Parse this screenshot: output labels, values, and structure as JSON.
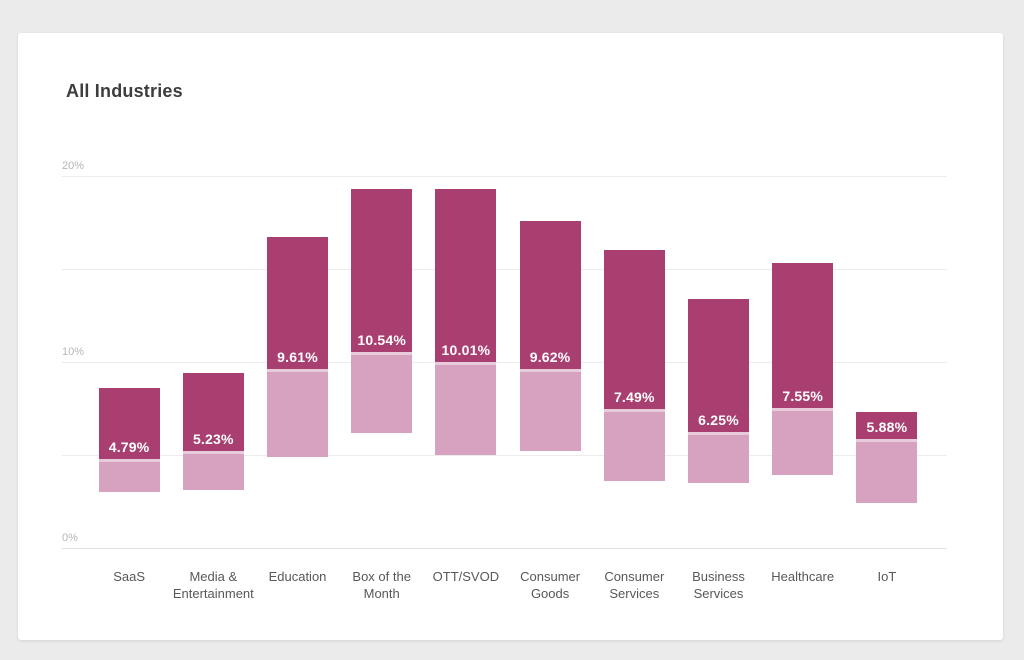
{
  "page": {
    "background_color": "#ebebeb",
    "card_background_color": "#ffffff"
  },
  "header": {
    "title": "All Industries"
  },
  "chart_data": {
    "type": "bar",
    "variant": "floating-range-bars-with-average-label",
    "title": "All Industries",
    "xlabel": "",
    "ylabel": "",
    "ylim": [
      0,
      20
    ],
    "grid": true,
    "gridline_percents": [
      0,
      5,
      10,
      15,
      20
    ],
    "yticks": [
      {
        "label": "0%",
        "value": 0
      },
      {
        "label": "10%",
        "value": 10
      },
      {
        "label": "20%",
        "value": 20
      }
    ],
    "legend": "none",
    "colors": {
      "upper_range": "#a93f70",
      "lower_range": "#d6a2bf",
      "range_separator": "#e8cbdb",
      "value_label_text": "#ffffff"
    },
    "categories": [
      {
        "label": "SaaS",
        "max": 8.6,
        "avg": 4.79,
        "min": 3.0,
        "avg_label": "4.79%"
      },
      {
        "label": "Media &\nEntertainment",
        "max": 9.4,
        "avg": 5.23,
        "min": 3.1,
        "avg_label": "5.23%"
      },
      {
        "label": "Education",
        "max": 16.7,
        "avg": 9.61,
        "min": 4.9,
        "avg_label": "9.61%"
      },
      {
        "label": "Box of the\nMonth",
        "max": 19.3,
        "avg": 10.54,
        "min": 6.2,
        "avg_label": "10.54%"
      },
      {
        "label": "OTT/SVOD",
        "max": 19.3,
        "avg": 10.01,
        "min": 5.0,
        "avg_label": "10.01%"
      },
      {
        "label": "Consumer\nGoods",
        "max": 17.6,
        "avg": 9.62,
        "min": 5.2,
        "avg_label": "9.62%"
      },
      {
        "label": "Consumer\nServices",
        "max": 16.0,
        "avg": 7.49,
        "min": 3.6,
        "avg_label": "7.49%"
      },
      {
        "label": "Business\nServices",
        "max": 13.4,
        "avg": 6.25,
        "min": 3.5,
        "avg_label": "6.25%"
      },
      {
        "label": "Healthcare",
        "max": 15.3,
        "avg": 7.55,
        "min": 3.9,
        "avg_label": "7.55%"
      },
      {
        "label": "IoT",
        "max": 7.3,
        "avg": 5.88,
        "min": 2.4,
        "avg_label": "5.88%"
      }
    ]
  }
}
